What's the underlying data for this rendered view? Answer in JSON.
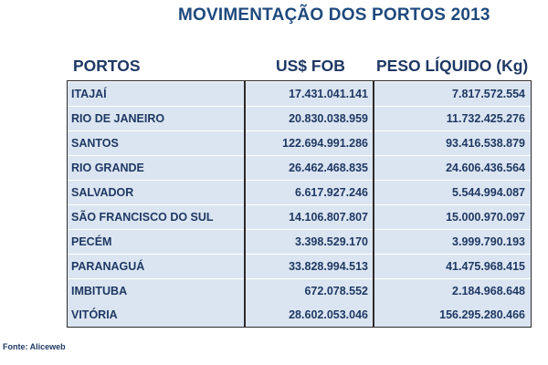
{
  "title": "MOVIMENTAÇÃO DOS PORTOS 2013",
  "headers": {
    "portos": "PORTOS",
    "usd_fob": "US$ FOB",
    "peso_liquido": "PESO LÍQUIDO (Kg)"
  },
  "rows": [
    {
      "porto": "ITAJAÍ",
      "usd_fob": "17.431.041.141",
      "peso": "7.817.572.554"
    },
    {
      "porto": "RIO DE JANEIRO",
      "usd_fob": "20.830.038.959",
      "peso": "11.732.425.276"
    },
    {
      "porto": "SANTOS",
      "usd_fob": "122.694.991.286",
      "peso": "93.416.538.879"
    },
    {
      "porto": "RIO GRANDE",
      "usd_fob": "26.462.468.835",
      "peso": "24.606.436.564"
    },
    {
      "porto": "SALVADOR",
      "usd_fob": "6.617.927.246",
      "peso": "5.544.994.087"
    },
    {
      "porto": "SÃO FRANCISCO DO SUL",
      "usd_fob": "14.106.807.807",
      "peso": "15.000.970.097"
    },
    {
      "porto": "PECÉM",
      "usd_fob": "3.398.529.170",
      "peso": "3.999.790.193"
    },
    {
      "porto": "PARANAGUÁ",
      "usd_fob": "33.828.994.513",
      "peso": "41.475.968.415"
    },
    {
      "porto": "IMBITUBA",
      "usd_fob": "672.078.552",
      "peso": "2.184.968.648"
    },
    {
      "porto": "VITÓRIA",
      "usd_fob": "28.602.053.046",
      "peso": "156.295.280.466"
    }
  ],
  "source": "Fonte: Aliceweb",
  "colors": {
    "title": "#1f497d",
    "text": "#1f3864",
    "row_background": "#dbe5f1",
    "border": "#2b2b2b"
  }
}
